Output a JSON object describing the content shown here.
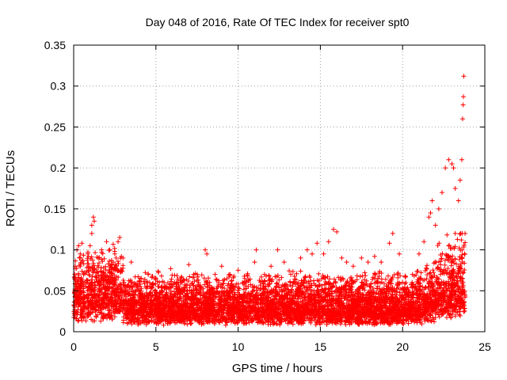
{
  "chart_data": {
    "type": "scatter",
    "title": "Day 048 of 2016, Rate Of TEC Index for receiver spt0",
    "xlabel": "GPS time / hours",
    "ylabel": "ROTI / TECUs",
    "xlim": [
      0,
      25
    ],
    "ylim": [
      0,
      0.35
    ],
    "xticks": [
      0,
      5,
      10,
      15,
      20,
      25
    ],
    "xtick_labels": [
      "0",
      "5",
      "10",
      "15",
      "20",
      "25"
    ],
    "yticks": [
      0,
      0.05,
      0.1,
      0.15,
      0.2,
      0.25,
      0.3,
      0.35
    ],
    "ytick_labels": [
      "0",
      "0.05",
      "0.1",
      "0.15",
      "0.2",
      "0.25",
      "0.3",
      "0.35"
    ],
    "grid": true,
    "marker": "+",
    "color": "#ff0000",
    "density_note": "thousands of points; typical ROTI 0.01-0.06 with spikes to ~0.12, rising after 21 h",
    "series": [
      {
        "name": "ROTI",
        "points": [
          [
            0.1,
            0.08
          ],
          [
            0.2,
            0.1
          ],
          [
            0.3,
            0.105
          ],
          [
            0.4,
            0.095
          ],
          [
            0.5,
            0.108
          ],
          [
            0.6,
            0.07
          ],
          [
            0.8,
            0.06
          ],
          [
            1.1,
            0.13
          ],
          [
            1.2,
            0.14
          ],
          [
            1.25,
            0.135
          ],
          [
            1.1,
            0.12
          ],
          [
            1.0,
            0.105
          ],
          [
            1.5,
            0.09
          ],
          [
            1.7,
            0.1
          ],
          [
            2.0,
            0.11
          ],
          [
            2.2,
            0.1
          ],
          [
            2.5,
            0.095
          ],
          [
            2.7,
            0.11
          ],
          [
            2.8,
            0.115
          ],
          [
            3.0,
            0.09
          ],
          [
            3.5,
            0.085
          ],
          [
            4.0,
            0.06
          ],
          [
            4.5,
            0.055
          ],
          [
            5.0,
            0.065
          ],
          [
            5.5,
            0.06
          ],
          [
            5.9,
            0.077
          ],
          [
            6.5,
            0.06
          ],
          [
            7.0,
            0.082
          ],
          [
            7.3,
            0.07
          ],
          [
            7.6,
            0.06
          ],
          [
            8.0,
            0.1
          ],
          [
            8.1,
            0.095
          ],
          [
            8.6,
            0.07
          ],
          [
            9.0,
            0.08
          ],
          [
            9.5,
            0.07
          ],
          [
            10.0,
            0.075
          ],
          [
            10.5,
            0.06
          ],
          [
            11.0,
            0.085
          ],
          [
            11.1,
            0.1
          ],
          [
            11.6,
            0.07
          ],
          [
            12.0,
            0.08
          ],
          [
            12.4,
            0.1
          ],
          [
            12.8,
            0.085
          ],
          [
            13.2,
            0.07
          ],
          [
            13.8,
            0.09
          ],
          [
            14.2,
            0.1
          ],
          [
            14.5,
            0.095
          ],
          [
            14.8,
            0.108
          ],
          [
            15.2,
            0.095
          ],
          [
            15.5,
            0.11
          ],
          [
            15.8,
            0.125
          ],
          [
            16.0,
            0.122
          ],
          [
            16.3,
            0.09
          ],
          [
            16.6,
            0.085
          ],
          [
            17.0,
            0.08
          ],
          [
            17.5,
            0.09
          ],
          [
            17.9,
            0.085
          ],
          [
            18.3,
            0.092
          ],
          [
            18.7,
            0.085
          ],
          [
            19.2,
            0.108
          ],
          [
            19.4,
            0.12
          ],
          [
            19.8,
            0.095
          ],
          [
            20.2,
            0.06
          ],
          [
            20.6,
            0.07
          ],
          [
            21.0,
            0.095
          ],
          [
            21.3,
            0.11
          ],
          [
            21.6,
            0.14
          ],
          [
            21.8,
            0.16
          ],
          [
            21.7,
            0.145
          ],
          [
            22.0,
            0.13
          ],
          [
            22.2,
            0.15
          ],
          [
            22.4,
            0.17
          ],
          [
            22.6,
            0.2
          ],
          [
            22.8,
            0.21
          ],
          [
            23.0,
            0.205
          ],
          [
            23.1,
            0.2
          ],
          [
            23.2,
            0.175
          ],
          [
            23.4,
            0.16
          ],
          [
            23.5,
            0.185
          ],
          [
            23.6,
            0.21
          ],
          [
            23.65,
            0.26
          ],
          [
            23.7,
            0.287
          ],
          [
            23.72,
            0.312
          ],
          [
            23.68,
            0.277
          ]
        ]
      }
    ]
  }
}
